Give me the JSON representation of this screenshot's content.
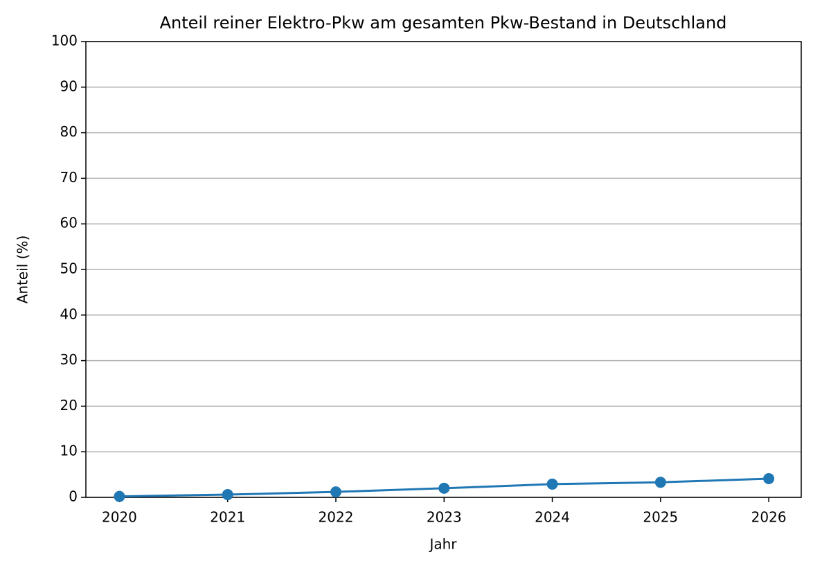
{
  "chart_data": {
    "type": "line",
    "title": "Anteil reiner Elektro-Pkw am gesamten Pkw-Bestand in Deutschland",
    "x_label": "Jahr",
    "y_label": "Anteil (%)",
    "x": [
      2020,
      2021,
      2022,
      2023,
      2024,
      2025,
      2026
    ],
    "values": [
      0.2,
      0.6,
      1.2,
      2.0,
      2.9,
      3.3,
      4.1
    ],
    "color": "#1f77b4",
    "xlim": [
      2019.69,
      2026.3
    ],
    "xticks": [
      2020,
      2021,
      2022,
      2023,
      2024,
      2025,
      2026
    ],
    "ylim": [
      0,
      100
    ],
    "yticks": [
      0,
      10,
      20,
      30,
      40,
      50,
      60,
      70,
      80,
      90,
      100
    ],
    "grid": "y"
  }
}
